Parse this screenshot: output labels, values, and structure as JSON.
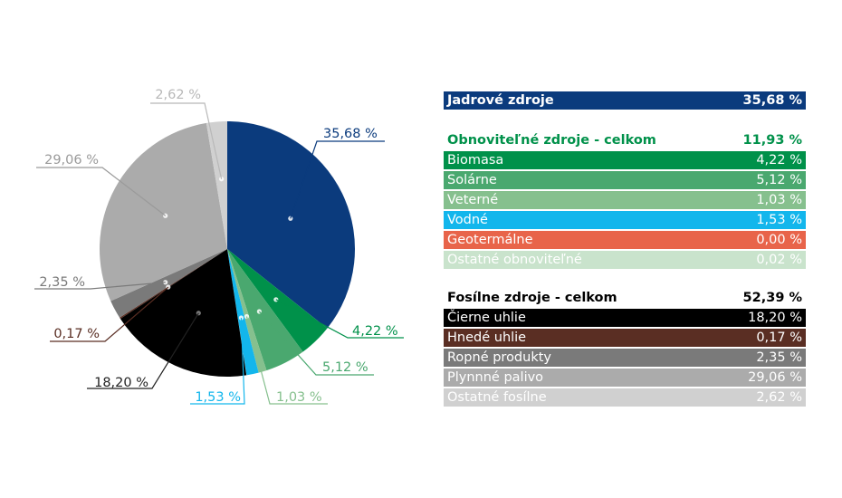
{
  "chart_data": {
    "type": "pie",
    "start_angle_deg": 0,
    "direction": "clockwise",
    "slices": [
      {
        "label": "Jadrové zdroje",
        "value": 35.68,
        "value_label": "35,68 %",
        "color": "#0b3b7d",
        "label_color": "#0b3b7d"
      },
      {
        "label": "Biomasa",
        "value": 4.22,
        "value_label": "4,22 %",
        "color": "#00914a",
        "label_color": "#00914a"
      },
      {
        "label": "Solárne",
        "value": 5.12,
        "value_label": "5,12 %",
        "color": "#4aa86f",
        "label_color": "#4aa86f"
      },
      {
        "label": "Veterné",
        "value": 1.03,
        "value_label": "1,03 %",
        "color": "#86c08e",
        "label_color": "#86c08e"
      },
      {
        "label": "Vodné",
        "value": 1.53,
        "value_label": "1,53 %",
        "color": "#13b6ec",
        "label_color": "#13b6ec"
      },
      {
        "label": "Geotermálne",
        "value": 0.0,
        "value_label": "",
        "color": "#e8644a",
        "label_color": "#e8644a"
      },
      {
        "label": "Ostatné obnoviteľné",
        "value": 0.02,
        "value_label": "",
        "color": "#c9e3cc",
        "label_color": "#c9e3cc"
      },
      {
        "label": "Čierne uhlie",
        "value": 18.2,
        "value_label": "18,20 %",
        "color": "#000000",
        "label_color": "#222222"
      },
      {
        "label": "Hnedé uhlie",
        "value": 0.17,
        "value_label": "0,17 %",
        "color": "#5a2e23",
        "label_color": "#5a2e23"
      },
      {
        "label": "Ropné produkty",
        "value": 2.35,
        "value_label": "2,35 %",
        "color": "#7a7a7a",
        "label_color": "#7a7a7a"
      },
      {
        "label": "Plynnné palivo",
        "value": 29.06,
        "value_label": "29,06 %",
        "color": "#ababab",
        "label_color": "#9a9a9a"
      },
      {
        "label": "Ostatné fosílne",
        "value": 2.62,
        "value_label": "2,62 %",
        "color": "#d0d0d0",
        "label_color": "#b8b8b8"
      }
    ]
  },
  "legend": {
    "nuclear": {
      "label": "Jadrové zdroje",
      "value": "35,68 %",
      "bg": "#0b3b7d",
      "fg": "#ffffff"
    },
    "renewables": {
      "header": {
        "label": "Obnoviteľné zdroje - celkom",
        "value": "11,93 %",
        "fg": "#00914a"
      },
      "rows": [
        {
          "label": "Biomasa",
          "value": "4,22 %",
          "bg": "#00914a",
          "fg": "#ffffff"
        },
        {
          "label": "Solárne",
          "value": "5,12 %",
          "bg": "#4aa86f",
          "fg": "#ffffff"
        },
        {
          "label": "Veterné",
          "value": "1,03 %",
          "bg": "#86c08e",
          "fg": "#ffffff"
        },
        {
          "label": "Vodné",
          "value": "1,53 %",
          "bg": "#13b6ec",
          "fg": "#ffffff"
        },
        {
          "label": "Geotermálne",
          "value": "0,00 %",
          "bg": "#e8644a",
          "fg": "#ffffff"
        },
        {
          "label": "Ostatné obnoviteľné",
          "value": "0,02 %",
          "bg": "#c9e3cc",
          "fg": "#ffffff"
        }
      ]
    },
    "fossil": {
      "header": {
        "label": "Fosílne zdroje - celkom",
        "value": "52,39 %",
        "fg": "#000000"
      },
      "rows": [
        {
          "label": "Čierne uhlie",
          "value": "18,20 %",
          "bg": "#000000",
          "fg": "#ffffff"
        },
        {
          "label": "Hnedé uhlie",
          "value": "0,17 %",
          "bg": "#5a2e23",
          "fg": "#ffffff"
        },
        {
          "label": "Ropné produkty",
          "value": "2,35 %",
          "bg": "#7a7a7a",
          "fg": "#ffffff"
        },
        {
          "label": "Plynnné palivo",
          "value": "29,06 %",
          "bg": "#ababab",
          "fg": "#ffffff"
        },
        {
          "label": "Ostatné fosílne",
          "value": "2,62 %",
          "bg": "#d0d0d0",
          "fg": "#ffffff"
        }
      ]
    }
  }
}
